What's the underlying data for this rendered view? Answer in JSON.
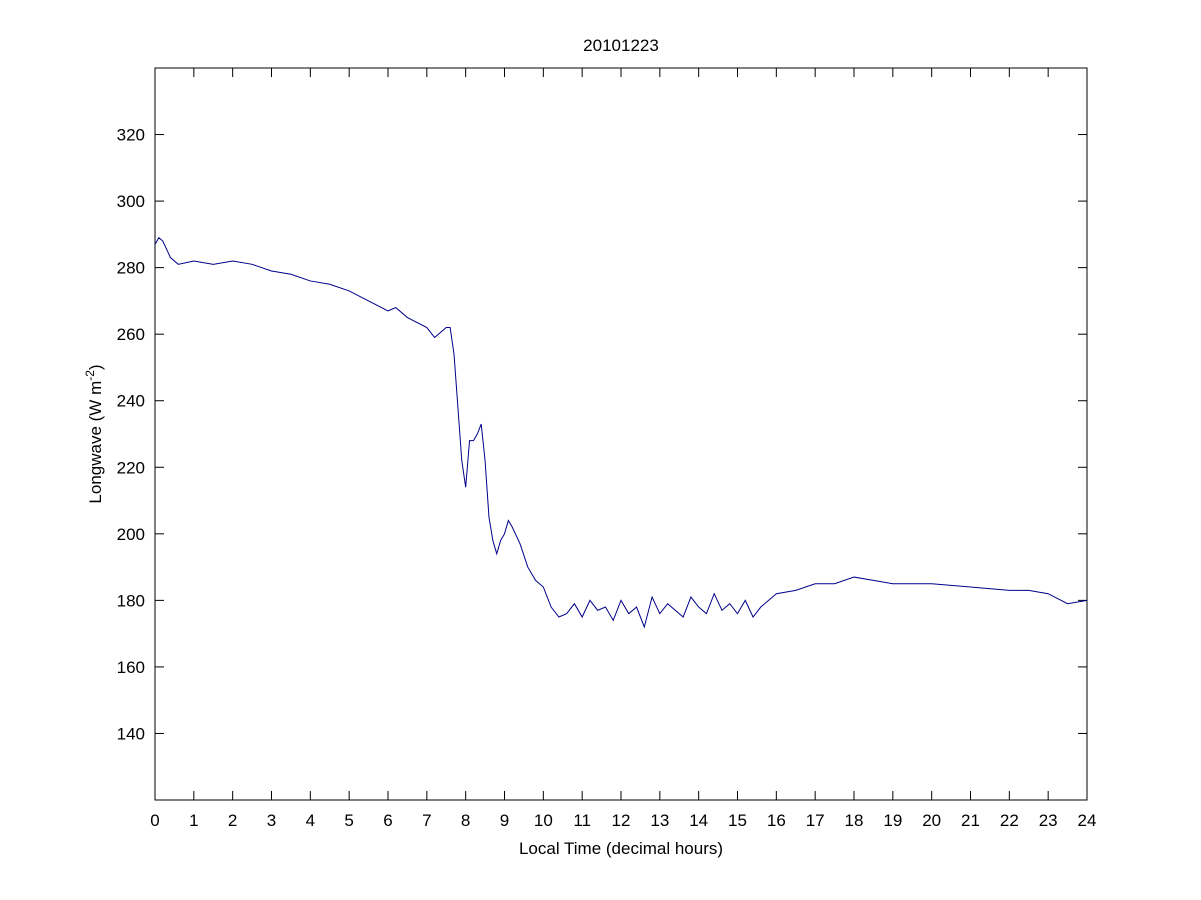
{
  "chart_data": {
    "type": "line",
    "title": "20101223",
    "xlabel": "Local Time (decimal hours)",
    "ylabel": [
      "Longwave (W m",
      "-2",
      ")"
    ],
    "x": [
      0,
      0.1,
      0.2,
      0.4,
      0.6,
      1,
      1.5,
      2,
      2.5,
      3,
      3.5,
      4,
      4.5,
      5,
      5.5,
      6,
      6.2,
      6.5,
      7,
      7.2,
      7.5,
      7.6,
      7.7,
      7.8,
      7.9,
      8,
      8.1,
      8.2,
      8.3,
      8.4,
      8.5,
      8.6,
      8.7,
      8.8,
      8.9,
      9,
      9.1,
      9.2,
      9.4,
      9.6,
      9.8,
      10,
      10.2,
      10.4,
      10.6,
      10.8,
      11,
      11.2,
      11.4,
      11.6,
      11.8,
      12,
      12.2,
      12.4,
      12.6,
      12.8,
      13,
      13.2,
      13.4,
      13.6,
      13.8,
      14,
      14.2,
      14.4,
      14.6,
      14.8,
      15,
      15.2,
      15.4,
      15.6,
      16,
      16.5,
      17,
      17.5,
      18,
      18.5,
      19,
      20,
      21,
      22,
      22.5,
      23,
      23.5,
      24
    ],
    "series": [
      {
        "color": "#00008b",
        "values": [
          287,
          289,
          288,
          283,
          281,
          282,
          281,
          282,
          281,
          279,
          278,
          276,
          275,
          273,
          270,
          267,
          268,
          265,
          262,
          259,
          262,
          262,
          254,
          238,
          222,
          214,
          228,
          228,
          230,
          233,
          222,
          205,
          198,
          194,
          198,
          200,
          204,
          202,
          197,
          190,
          186,
          184,
          178,
          175,
          176,
          179,
          175,
          180,
          177,
          178,
          174,
          180,
          176,
          178,
          172,
          181,
          176,
          179,
          177,
          175,
          181,
          178,
          176,
          182,
          177,
          179,
          176,
          180,
          175,
          178,
          182,
          183,
          185,
          185,
          187,
          186,
          185,
          185,
          184,
          183,
          183,
          182,
          179,
          180
        ]
      }
    ],
    "xlim": [
      0,
      24
    ],
    "ylim": [
      120,
      340
    ],
    "xticks": [
      0,
      1,
      2,
      3,
      4,
      5,
      6,
      7,
      8,
      9,
      10,
      11,
      12,
      13,
      14,
      15,
      16,
      17,
      18,
      19,
      20,
      21,
      22,
      23,
      24
    ],
    "yticks": [
      140,
      160,
      180,
      200,
      220,
      240,
      260,
      280,
      300,
      320
    ],
    "grid": false
  }
}
